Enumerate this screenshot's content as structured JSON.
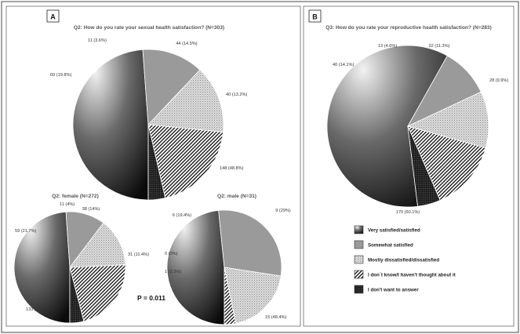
{
  "panels": [
    {
      "label": "A"
    },
    {
      "label": "B"
    }
  ],
  "p_value_text": "P = 0.011",
  "legend": [
    {
      "label": "Very satisfied/satisfied",
      "pattern": "gradient"
    },
    {
      "label": "Somewhat satisfied",
      "pattern": "gray"
    },
    {
      "label": "Mostly dissatisfied/dissatisfied",
      "pattern": "dots"
    },
    {
      "label": "I don´t know/I haven't thought about it",
      "pattern": "stripes"
    },
    {
      "label": "I don't want to answer",
      "pattern": "dark"
    }
  ],
  "chart_data": [
    {
      "type": "pie",
      "title": "Q2: How do you rate your sexual health satisfaction? (N=303)",
      "slices": [
        {
          "category": "Very satisfied/satisfied",
          "value": 148,
          "label": "148 (48.8%)"
        },
        {
          "category": "Somewhat satisfied",
          "value": 40,
          "label": "40 (13.2%)"
        },
        {
          "category": "Mostly dissatisfied/dissatisfied",
          "value": 44,
          "label": "44 (14.5%)"
        },
        {
          "category": "I don´t know/I haven't thought about it",
          "value": 60,
          "label": "60 (19.8%)"
        },
        {
          "category": "I don't want to answer",
          "value": 11,
          "label": "11 (3.6%)"
        }
      ]
    },
    {
      "type": "pie",
      "title": "Q3: How do you rate your reproductive health satisfaction? (N=283)",
      "slices": [
        {
          "category": "Very satisfied/satisfied",
          "value": 170,
          "label": "170 (60.1%)"
        },
        {
          "category": "Somewhat satisfied",
          "value": 28,
          "label": "28 (9.9%)"
        },
        {
          "category": "Mostly dissatisfied/dissatisfied",
          "value": 32,
          "label": "32 (11.3%)"
        },
        {
          "category": "I don´t know/I haven't thought about it",
          "value": 40,
          "label": "40 (14.1%)"
        },
        {
          "category": "I don't want to answer",
          "value": 13,
          "label": "13 (4.6%)"
        }
      ]
    },
    {
      "type": "pie",
      "title": "Q2: female (N=272)",
      "slices": [
        {
          "category": "Very satisfied/satisfied",
          "value": 133,
          "label": "133 (48.9%)"
        },
        {
          "category": "Somewhat satisfied",
          "value": 31,
          "label": "31 (11.4%)"
        },
        {
          "category": "Mostly dissatisfied/dissatisfied",
          "value": 38,
          "label": "38 (14%)"
        },
        {
          "category": "I don´t know/I haven't thought about it",
          "value": 59,
          "label": "59 (21.7%)"
        },
        {
          "category": "I don't want to answer",
          "value": 11,
          "label": "11 (4%)"
        }
      ]
    },
    {
      "type": "pie",
      "title": "Q2: male (N=31)",
      "slices": [
        {
          "category": "Very satisfied/satisfied",
          "value": 15,
          "label": "15 (48.4%)"
        },
        {
          "category": "Somewhat satisfied",
          "value": 9,
          "label": "9 (29%)"
        },
        {
          "category": "Mostly dissatisfied/dissatisfied",
          "value": 6,
          "label": "6 (19.4%)"
        },
        {
          "category": "I don´t know/I haven't thought about it",
          "value": 1,
          "label": "1 (3.2%)"
        },
        {
          "category": "I don't want to answer",
          "value": 0,
          "label": "0 (0%)"
        }
      ]
    }
  ]
}
